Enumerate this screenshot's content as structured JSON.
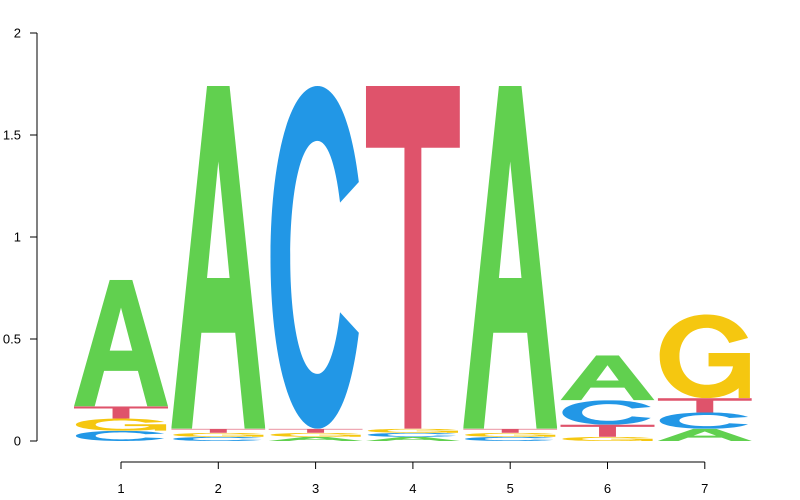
{
  "chart_data": {
    "type": "sequence-logo",
    "title": "",
    "xlabel": "",
    "ylabel": "",
    "ylim": [
      0,
      2
    ],
    "yticks": [
      "0",
      "0.5",
      "1",
      "1.5",
      "2"
    ],
    "ytick_values": [
      0,
      0.5,
      1,
      1.5,
      2
    ],
    "positions": [
      "1",
      "2",
      "3",
      "4",
      "5",
      "6",
      "7"
    ],
    "colors": {
      "A": "#61D04F",
      "C": "#2297E6",
      "G": "#F5C710",
      "T": "#DF536B"
    },
    "stacks": [
      [
        {
          "base": "C",
          "value": 0.05
        },
        {
          "base": "G",
          "value": 0.06
        },
        {
          "base": "T",
          "value": 0.06
        },
        {
          "base": "A",
          "value": 0.62
        }
      ],
      [
        {
          "base": "C",
          "value": 0.02
        },
        {
          "base": "G",
          "value": 0.02
        },
        {
          "base": "T",
          "value": 0.02
        },
        {
          "base": "A",
          "value": 1.68
        }
      ],
      [
        {
          "base": "A",
          "value": 0.02
        },
        {
          "base": "G",
          "value": 0.02
        },
        {
          "base": "T",
          "value": 0.02
        },
        {
          "base": "C",
          "value": 1.68
        }
      ],
      [
        {
          "base": "A",
          "value": 0.02
        },
        {
          "base": "C",
          "value": 0.02
        },
        {
          "base": "G",
          "value": 0.02
        },
        {
          "base": "T",
          "value": 1.68
        }
      ],
      [
        {
          "base": "C",
          "value": 0.02
        },
        {
          "base": "G",
          "value": 0.02
        },
        {
          "base": "T",
          "value": 0.02
        },
        {
          "base": "A",
          "value": 1.68
        }
      ],
      [
        {
          "base": "G",
          "value": 0.02
        },
        {
          "base": "T",
          "value": 0.06
        },
        {
          "base": "C",
          "value": 0.12
        },
        {
          "base": "A",
          "value": 0.22
        }
      ],
      [
        {
          "base": "A",
          "value": 0.06
        },
        {
          "base": "C",
          "value": 0.08
        },
        {
          "base": "T",
          "value": 0.07
        },
        {
          "base": "G",
          "value": 0.41
        }
      ]
    ]
  }
}
